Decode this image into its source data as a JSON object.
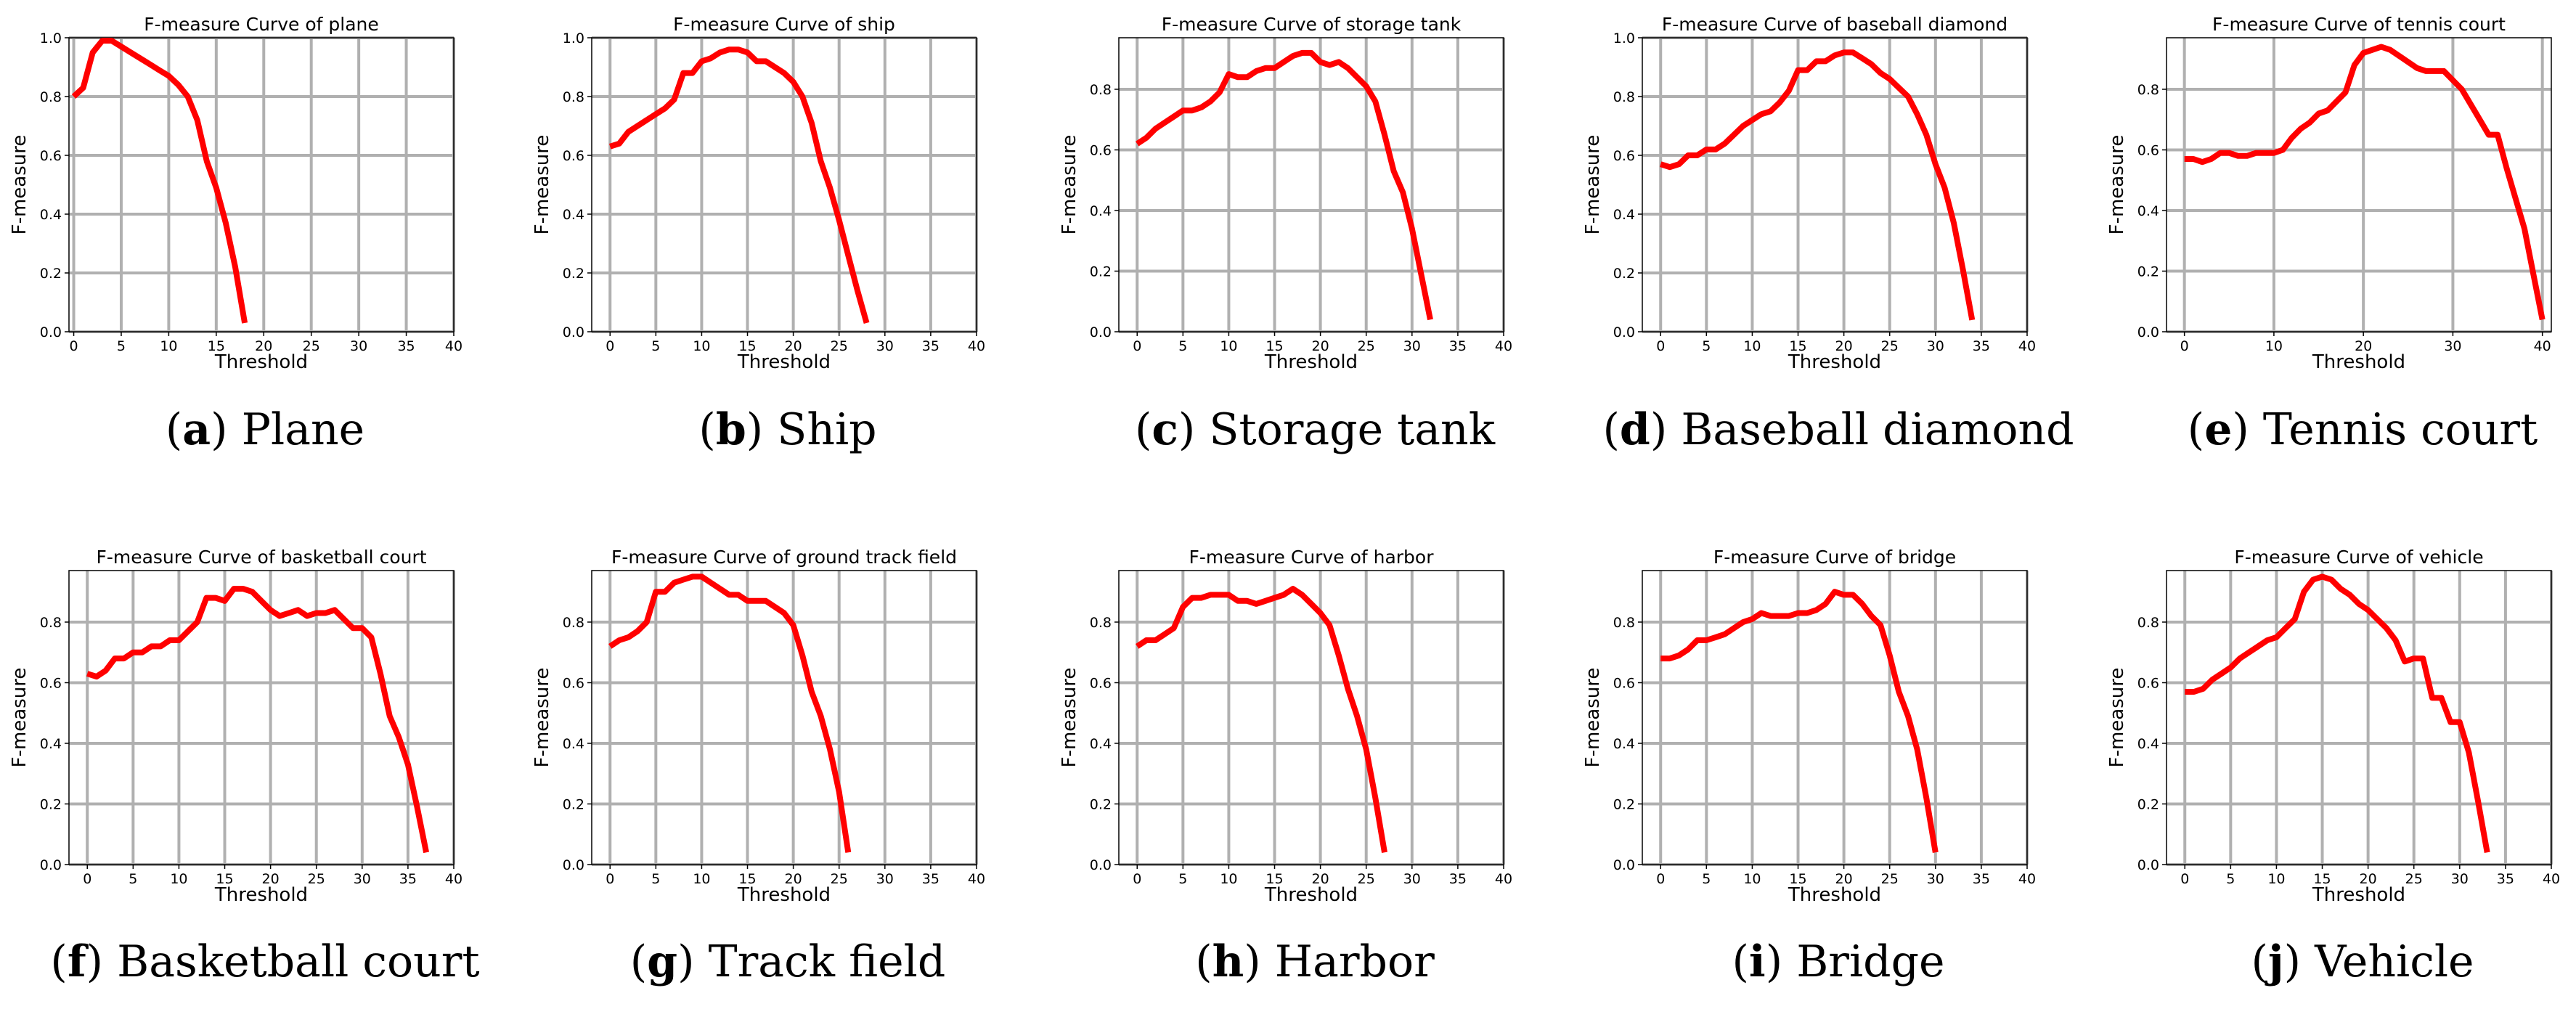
{
  "figure": {
    "xlabel": "Threshold",
    "ylabel": "F-measure",
    "line_color": "#ff0000",
    "grid_color": "#b0b0b0"
  },
  "chart_data": [
    {
      "type": "line",
      "letter": "a",
      "caption": "Plane",
      "title": "F-measure Curve of plane",
      "xlabel": "Threshold",
      "ylabel": "F-measure",
      "xlim": [
        -0.5,
        40
      ],
      "ylim": [
        0,
        1.0
      ],
      "xticks": [
        0,
        5,
        10,
        15,
        20,
        25,
        30,
        35,
        40
      ],
      "yticks": [
        0.0,
        0.2,
        0.4,
        0.6,
        0.8,
        1.0
      ],
      "x": [
        0,
        1,
        2,
        3,
        4,
        5,
        6,
        7,
        8,
        9,
        10,
        11,
        12,
        13,
        14,
        15,
        16,
        17,
        18
      ],
      "y": [
        0.8,
        0.83,
        0.95,
        0.99,
        0.99,
        0.97,
        0.95,
        0.93,
        0.91,
        0.89,
        0.87,
        0.84,
        0.8,
        0.72,
        0.58,
        0.49,
        0.37,
        0.22,
        0.03
      ]
    },
    {
      "type": "line",
      "letter": "b",
      "caption": "Ship",
      "title": "F-measure Curve of ship",
      "xlabel": "Threshold",
      "ylabel": "F-measure",
      "xlim": [
        -2,
        40
      ],
      "ylim": [
        0,
        1.0
      ],
      "xticks": [
        0,
        5,
        10,
        15,
        20,
        25,
        30,
        35,
        40
      ],
      "yticks": [
        0.0,
        0.2,
        0.4,
        0.6,
        0.8,
        1.0
      ],
      "x": [
        0,
        1,
        2,
        3,
        4,
        5,
        6,
        7,
        8,
        9,
        10,
        11,
        12,
        13,
        14,
        15,
        16,
        17,
        18,
        19,
        20,
        21,
        22,
        23,
        24,
        25,
        26,
        27,
        28
      ],
      "y": [
        0.63,
        0.64,
        0.68,
        0.7,
        0.72,
        0.74,
        0.76,
        0.79,
        0.88,
        0.88,
        0.92,
        0.93,
        0.95,
        0.96,
        0.96,
        0.95,
        0.92,
        0.92,
        0.9,
        0.88,
        0.85,
        0.8,
        0.71,
        0.58,
        0.49,
        0.38,
        0.26,
        0.14,
        0.03
      ]
    },
    {
      "type": "line",
      "letter": "c",
      "caption": "Storage tank",
      "title": "F-measure Curve of storage tank",
      "xlabel": "Threshold",
      "ylabel": "F-measure",
      "xlim": [
        -2,
        40
      ],
      "ylim": [
        0,
        0.97
      ],
      "xticks": [
        0,
        5,
        10,
        15,
        20,
        25,
        30,
        35,
        40
      ],
      "yticks": [
        0.0,
        0.2,
        0.4,
        0.6,
        0.8
      ],
      "x": [
        0,
        1,
        2,
        3,
        4,
        5,
        6,
        7,
        8,
        9,
        10,
        11,
        12,
        13,
        14,
        15,
        16,
        17,
        18,
        19,
        20,
        21,
        22,
        23,
        24,
        25,
        26,
        27,
        28,
        29,
        30,
        31,
        32
      ],
      "y": [
        0.62,
        0.64,
        0.67,
        0.69,
        0.71,
        0.73,
        0.73,
        0.74,
        0.76,
        0.79,
        0.85,
        0.84,
        0.84,
        0.86,
        0.87,
        0.87,
        0.89,
        0.91,
        0.92,
        0.92,
        0.89,
        0.88,
        0.89,
        0.87,
        0.84,
        0.81,
        0.76,
        0.65,
        0.53,
        0.46,
        0.34,
        0.19,
        0.04
      ]
    },
    {
      "type": "line",
      "letter": "d",
      "caption": "Baseball diamond",
      "title": "F-measure Curve of baseball diamond",
      "xlabel": "Threshold",
      "ylabel": "F-measure",
      "xlim": [
        -2,
        40
      ],
      "ylim": [
        0,
        1.0
      ],
      "xticks": [
        0,
        5,
        10,
        15,
        20,
        25,
        30,
        35,
        40
      ],
      "yticks": [
        0.0,
        0.2,
        0.4,
        0.6,
        0.8,
        1.0
      ],
      "x": [
        0,
        1,
        2,
        3,
        4,
        5,
        6,
        7,
        8,
        9,
        10,
        11,
        12,
        13,
        14,
        15,
        16,
        17,
        18,
        19,
        20,
        21,
        22,
        23,
        24,
        25,
        26,
        27,
        28,
        29,
        30,
        31,
        32,
        33,
        34
      ],
      "y": [
        0.57,
        0.56,
        0.57,
        0.6,
        0.6,
        0.62,
        0.62,
        0.64,
        0.67,
        0.7,
        0.72,
        0.74,
        0.75,
        0.78,
        0.82,
        0.89,
        0.89,
        0.92,
        0.92,
        0.94,
        0.95,
        0.95,
        0.93,
        0.91,
        0.88,
        0.86,
        0.83,
        0.8,
        0.74,
        0.67,
        0.57,
        0.49,
        0.37,
        0.21,
        0.04
      ]
    },
    {
      "type": "line",
      "letter": "e",
      "caption": "Tennis court",
      "title": "F-measure Curve of tennis court",
      "xlabel": "Threshold",
      "ylabel": "F-measure",
      "xlim": [
        -2,
        41
      ],
      "ylim": [
        0,
        0.97
      ],
      "xticks": [
        0,
        10,
        20,
        30,
        40
      ],
      "yticks": [
        0.0,
        0.2,
        0.4,
        0.6,
        0.8
      ],
      "x": [
        0,
        1,
        2,
        3,
        4,
        5,
        6,
        7,
        8,
        9,
        10,
        11,
        12,
        13,
        14,
        15,
        16,
        17,
        18,
        19,
        20,
        21,
        22,
        23,
        24,
        25,
        26,
        27,
        28,
        29,
        30,
        31,
        32,
        33,
        34,
        35,
        36,
        37,
        38,
        39,
        40
      ],
      "y": [
        0.57,
        0.57,
        0.56,
        0.57,
        0.59,
        0.59,
        0.58,
        0.58,
        0.59,
        0.59,
        0.59,
        0.6,
        0.64,
        0.67,
        0.69,
        0.72,
        0.73,
        0.76,
        0.79,
        0.88,
        0.92,
        0.93,
        0.94,
        0.93,
        0.91,
        0.89,
        0.87,
        0.86,
        0.86,
        0.86,
        0.83,
        0.8,
        0.75,
        0.7,
        0.65,
        0.65,
        0.54,
        0.44,
        0.34,
        0.19,
        0.04
      ]
    },
    {
      "type": "line",
      "letter": "f",
      "caption": "Basketball court",
      "title": "F-measure Curve of basketball court",
      "xlabel": "Threshold",
      "ylabel": "F-measure",
      "xlim": [
        -2,
        40
      ],
      "ylim": [
        0,
        0.97
      ],
      "xticks": [
        0,
        5,
        10,
        15,
        20,
        25,
        30,
        35,
        40
      ],
      "yticks": [
        0.0,
        0.2,
        0.4,
        0.6,
        0.8
      ],
      "x": [
        0,
        1,
        2,
        3,
        4,
        5,
        6,
        7,
        8,
        9,
        10,
        11,
        12,
        13,
        14,
        15,
        16,
        17,
        18,
        19,
        20,
        21,
        22,
        23,
        24,
        25,
        26,
        27,
        28,
        29,
        30,
        31,
        32,
        33,
        34,
        35,
        36,
        37
      ],
      "y": [
        0.63,
        0.62,
        0.64,
        0.68,
        0.68,
        0.7,
        0.7,
        0.72,
        0.72,
        0.74,
        0.74,
        0.77,
        0.8,
        0.88,
        0.88,
        0.87,
        0.91,
        0.91,
        0.9,
        0.87,
        0.84,
        0.82,
        0.83,
        0.84,
        0.82,
        0.83,
        0.83,
        0.84,
        0.81,
        0.78,
        0.78,
        0.75,
        0.63,
        0.49,
        0.42,
        0.33,
        0.19,
        0.04
      ]
    },
    {
      "type": "line",
      "letter": "g",
      "caption": "Track field",
      "title": "F-measure Curve of ground track field",
      "xlabel": "Threshold",
      "ylabel": "F-measure",
      "xlim": [
        -2,
        40
      ],
      "ylim": [
        0,
        0.97
      ],
      "xticks": [
        0,
        5,
        10,
        15,
        20,
        25,
        30,
        35,
        40
      ],
      "yticks": [
        0.0,
        0.2,
        0.4,
        0.6,
        0.8
      ],
      "x": [
        0,
        1,
        2,
        3,
        4,
        5,
        6,
        7,
        8,
        9,
        10,
        11,
        12,
        13,
        14,
        15,
        16,
        17,
        18,
        19,
        20,
        21,
        22,
        23,
        24,
        25,
        26
      ],
      "y": [
        0.72,
        0.74,
        0.75,
        0.77,
        0.8,
        0.9,
        0.9,
        0.93,
        0.94,
        0.95,
        0.95,
        0.93,
        0.91,
        0.89,
        0.89,
        0.87,
        0.87,
        0.87,
        0.85,
        0.83,
        0.79,
        0.69,
        0.57,
        0.49,
        0.38,
        0.24,
        0.04
      ]
    },
    {
      "type": "line",
      "letter": "h",
      "caption": "Harbor",
      "title": "F-measure Curve of harbor",
      "xlabel": "Threshold",
      "ylabel": "F-measure",
      "xlim": [
        -2,
        40
      ],
      "ylim": [
        0,
        0.97
      ],
      "xticks": [
        0,
        5,
        10,
        15,
        20,
        25,
        30,
        35,
        40
      ],
      "yticks": [
        0.0,
        0.2,
        0.4,
        0.6,
        0.8
      ],
      "x": [
        0,
        1,
        2,
        3,
        4,
        5,
        6,
        7,
        8,
        9,
        10,
        11,
        12,
        13,
        14,
        15,
        16,
        17,
        18,
        19,
        20,
        21,
        22,
        23,
        24,
        25,
        26,
        27
      ],
      "y": [
        0.72,
        0.74,
        0.74,
        0.76,
        0.78,
        0.85,
        0.88,
        0.88,
        0.89,
        0.89,
        0.89,
        0.87,
        0.87,
        0.86,
        0.87,
        0.88,
        0.89,
        0.91,
        0.89,
        0.86,
        0.83,
        0.79,
        0.69,
        0.58,
        0.49,
        0.38,
        0.22,
        0.04
      ]
    },
    {
      "type": "line",
      "letter": "i",
      "caption": "Bridge",
      "title": "F-measure Curve of bridge",
      "xlabel": "Threshold",
      "ylabel": "F-measure",
      "xlim": [
        -2,
        40
      ],
      "ylim": [
        0,
        0.97
      ],
      "xticks": [
        0,
        5,
        10,
        15,
        20,
        25,
        30,
        35,
        40
      ],
      "yticks": [
        0.0,
        0.2,
        0.4,
        0.6,
        0.8
      ],
      "x": [
        0,
        1,
        2,
        3,
        4,
        5,
        6,
        7,
        8,
        9,
        10,
        11,
        12,
        13,
        14,
        15,
        16,
        17,
        18,
        19,
        20,
        21,
        22,
        23,
        24,
        25,
        26,
        27,
        28,
        29,
        30
      ],
      "y": [
        0.68,
        0.68,
        0.69,
        0.71,
        0.74,
        0.74,
        0.75,
        0.76,
        0.78,
        0.8,
        0.81,
        0.83,
        0.82,
        0.82,
        0.82,
        0.83,
        0.83,
        0.84,
        0.86,
        0.9,
        0.89,
        0.89,
        0.86,
        0.82,
        0.79,
        0.69,
        0.57,
        0.49,
        0.38,
        0.22,
        0.04
      ]
    },
    {
      "type": "line",
      "letter": "j",
      "caption": "Vehicle",
      "title": "F-measure Curve of vehicle",
      "xlabel": "Threshold",
      "ylabel": "F-measure",
      "xlim": [
        -2,
        40
      ],
      "ylim": [
        0,
        0.97
      ],
      "xticks": [
        0,
        5,
        10,
        15,
        20,
        25,
        30,
        35,
        40
      ],
      "yticks": [
        0.0,
        0.2,
        0.4,
        0.6,
        0.8
      ],
      "x": [
        0,
        1,
        2,
        3,
        4,
        5,
        6,
        7,
        8,
        9,
        10,
        11,
        12,
        13,
        14,
        15,
        16,
        17,
        18,
        19,
        20,
        21,
        22,
        23,
        24,
        25,
        26,
        27,
        28,
        29,
        30,
        31,
        32,
        33
      ],
      "y": [
        0.57,
        0.57,
        0.58,
        0.61,
        0.63,
        0.65,
        0.68,
        0.7,
        0.72,
        0.74,
        0.75,
        0.78,
        0.81,
        0.9,
        0.94,
        0.95,
        0.94,
        0.91,
        0.89,
        0.86,
        0.84,
        0.81,
        0.78,
        0.74,
        0.67,
        0.68,
        0.68,
        0.55,
        0.55,
        0.47,
        0.47,
        0.37,
        0.21,
        0.04
      ]
    }
  ]
}
